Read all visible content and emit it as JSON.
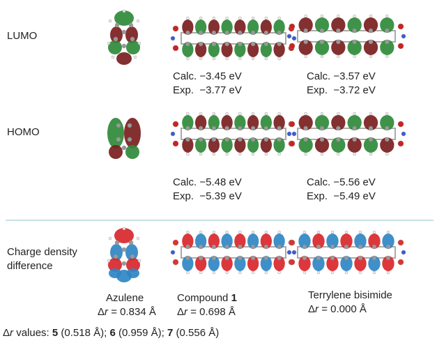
{
  "rows": {
    "lumo": "LUMO",
    "homo": "HOMO",
    "charge": "Charge density difference"
  },
  "energies": {
    "lumo": [
      {
        "calc": "Calc. −3.45 eV",
        "exp": "Exp.  −3.77 eV"
      },
      {
        "calc": "Calc. −3.57 eV",
        "exp": "Exp.  −3.72 eV"
      }
    ],
    "homo": [
      {
        "calc": "Calc. −5.48 eV",
        "exp": "Exp.  −5.39 eV"
      },
      {
        "calc": "Calc. −5.56 eV",
        "exp": "Exp.  −5.49 eV"
      }
    ]
  },
  "molecules": [
    {
      "name": "Azulene",
      "delta": "Δ",
      "var": "r",
      "rest": " = 0.834 Å"
    },
    {
      "name": "Compound ",
      "number": "1",
      "delta": "Δ",
      "var": "r",
      "rest": " = 0.698 Å"
    },
    {
      "name": "Terrylene bisimide",
      "delta": "Δ",
      "var": "r",
      "rest": " = 0.000 Å"
    }
  ],
  "footnote": {
    "delta": "Δ",
    "var": "r",
    "rest": " values: ",
    "items": [
      {
        "compound": "5",
        "text": " (0.518 Å); "
      },
      {
        "compound": "6",
        "text": " (0.959 Å); "
      },
      {
        "compound": "7",
        "text": " (0.556 Å)"
      }
    ]
  }
}
